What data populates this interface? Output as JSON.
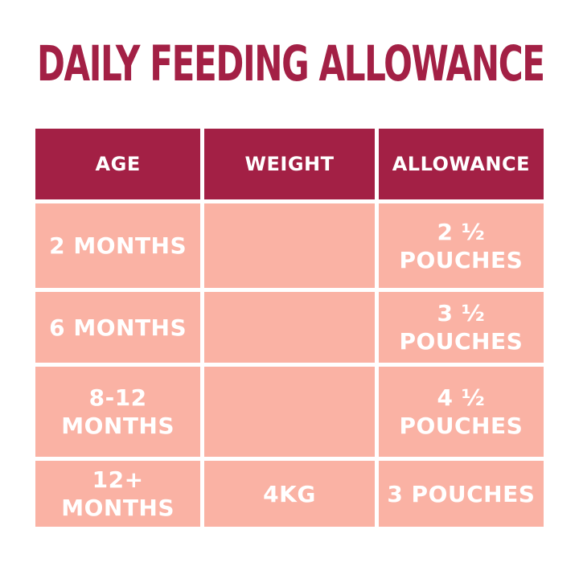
{
  "colors": {
    "accent": "#a32045",
    "row_bg": "#fab2a4",
    "header_text": "#ffffff",
    "cell_text": "#ffffff",
    "page_bg": "#ffffff"
  },
  "title": "DAILY FEEDING ALLOWANCE",
  "table": {
    "headers": [
      "AGE",
      "WEIGHT",
      "ALLOWANCE"
    ],
    "rows": [
      {
        "age": "2 MONTHS",
        "weight": "",
        "allowance": "2 ½\nPOUCHES"
      },
      {
        "age": "6 MONTHS",
        "weight": "",
        "allowance": "3 ½ POUCHES"
      },
      {
        "age": "8-12 MONTHS",
        "weight": "",
        "allowance": "4 ½\nPOUCHES"
      },
      {
        "age": "12+ MONTHS",
        "weight": "4KG",
        "allowance": "3 POUCHES"
      }
    ]
  },
  "chart_data": {
    "type": "table",
    "title": "DAILY FEEDING ALLOWANCE",
    "columns": [
      "AGE",
      "WEIGHT",
      "ALLOWANCE"
    ],
    "rows": [
      [
        "2 MONTHS",
        "",
        "2 ½ POUCHES"
      ],
      [
        "6 MONTHS",
        "",
        "3 ½ POUCHES"
      ],
      [
        "8-12 MONTHS",
        "",
        "4 ½ POUCHES"
      ],
      [
        "12+ MONTHS",
        "4KG",
        "3 POUCHES"
      ]
    ]
  }
}
